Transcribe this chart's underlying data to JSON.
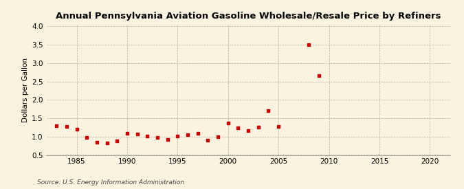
{
  "title": "Annual Pennsylvania Aviation Gasoline Wholesale/Resale Price by Refiners",
  "ylabel": "Dollars per Gallon",
  "source": "Source: U.S. Energy Information Administration",
  "background_color": "#faf3e0",
  "marker_color": "#cc0000",
  "xlim": [
    1982,
    2022
  ],
  "ylim": [
    0.5,
    4.05
  ],
  "yticks": [
    0.5,
    1.0,
    1.5,
    2.0,
    2.5,
    3.0,
    3.5,
    4.0
  ],
  "xticks": [
    1985,
    1990,
    1995,
    2000,
    2005,
    2010,
    2015,
    2020
  ],
  "years": [
    1983,
    1984,
    1985,
    1986,
    1987,
    1988,
    1989,
    1990,
    1991,
    1992,
    1993,
    1994,
    1995,
    1996,
    1997,
    1998,
    1999,
    2000,
    2001,
    2002,
    2003,
    2004,
    2005,
    2008,
    2009
  ],
  "values": [
    1.29,
    1.27,
    1.2,
    0.98,
    0.84,
    0.83,
    0.88,
    1.09,
    1.07,
    1.02,
    0.97,
    0.92,
    1.01,
    1.06,
    1.08,
    0.91,
    1.0,
    1.37,
    1.24,
    1.17,
    1.26,
    1.7,
    1.28,
    3.51,
    2.67
  ],
  "title_fontsize": 9.5,
  "axis_fontsize": 7.5,
  "source_fontsize": 6.5
}
